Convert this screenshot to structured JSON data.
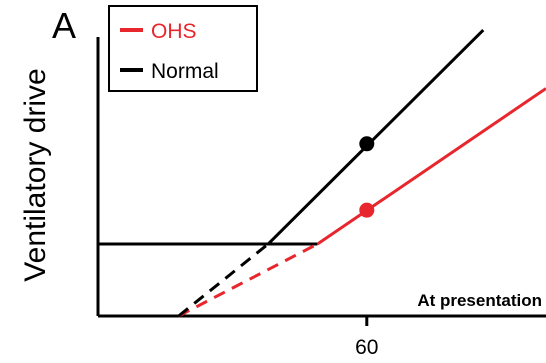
{
  "chart_data": {
    "type": "line",
    "panel_label": "A",
    "ylabel": "Ventilatory drive",
    "xlabel": "At presentation",
    "xticks": [
      60
    ],
    "xlim": [
      0,
      100
    ],
    "ylim": [
      0,
      100
    ],
    "grid": false,
    "legend": {
      "placement": "top-left",
      "entries": [
        {
          "name": "OHS",
          "color": "#e8262d"
        },
        {
          "name": "Normal",
          "color": "#000000"
        }
      ]
    },
    "series": [
      {
        "name": "OHS",
        "color": "#e8262d",
        "dashed": [
          {
            "x": 18,
            "y": 0
          },
          {
            "x": 49,
            "y": 22.8
          }
        ],
        "solid": [
          {
            "x": 49,
            "y": 22.8
          },
          {
            "x": 100,
            "y": 72
          }
        ],
        "marker": {
          "x": 60,
          "y": 33.5
        }
      },
      {
        "name": "Normal",
        "color": "#000000",
        "dashed": [
          {
            "x": 18,
            "y": 0
          },
          {
            "x": 38,
            "y": 22.8
          }
        ],
        "solid": [
          {
            "x": 38,
            "y": 22.8
          },
          {
            "x": 86,
            "y": 90.5
          }
        ],
        "marker": {
          "x": 60,
          "y": 54.5
        }
      }
    ],
    "reference_lines": [
      {
        "from": {
          "x": 0,
          "y": 22.8
        },
        "to": {
          "x": 49,
          "y": 22.8
        },
        "color": "#000000"
      }
    ]
  }
}
